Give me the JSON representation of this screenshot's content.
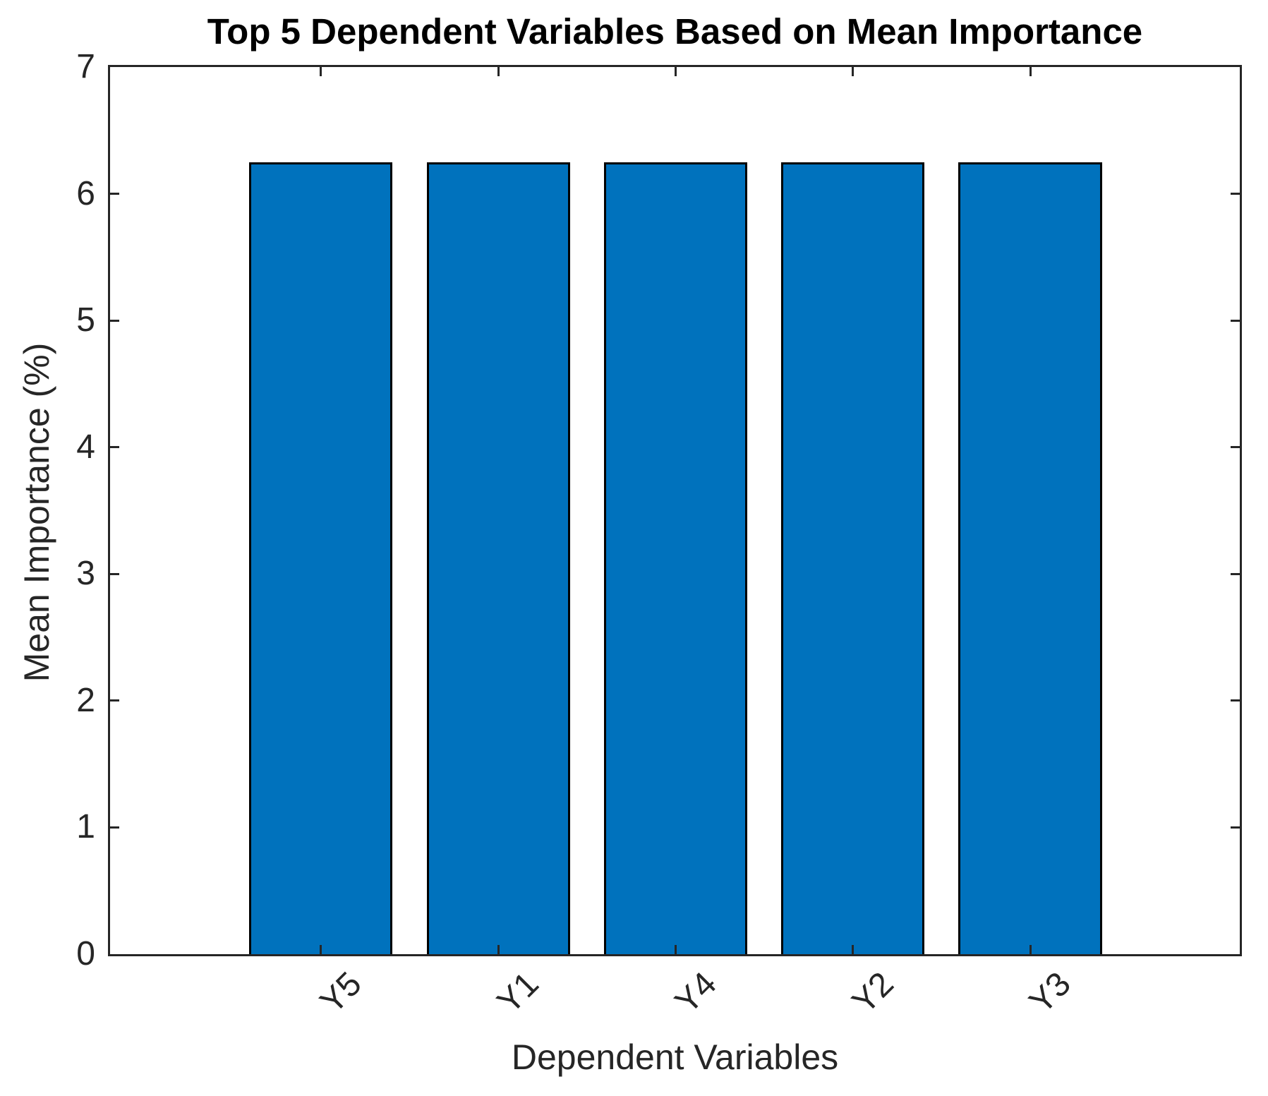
{
  "chart_data": {
    "type": "bar",
    "title": "Top 5 Dependent Variables Based on Mean Importance",
    "xlabel": "Dependent Variables",
    "ylabel": "Mean Importance (%)",
    "categories": [
      "Y5",
      "Y1",
      "Y4",
      "Y2",
      "Y3"
    ],
    "values": [
      6.25,
      6.25,
      6.25,
      6.25,
      6.25
    ],
    "ylim": [
      0,
      7
    ],
    "yticks": [
      0,
      1,
      2,
      3,
      4,
      5,
      6,
      7
    ],
    "xtick_angle_deg": 45,
    "bar_color": "#0072BD",
    "bar_edge_color": "#000000",
    "axis_color": "#262626",
    "grid": false,
    "legend_visible": false
  }
}
